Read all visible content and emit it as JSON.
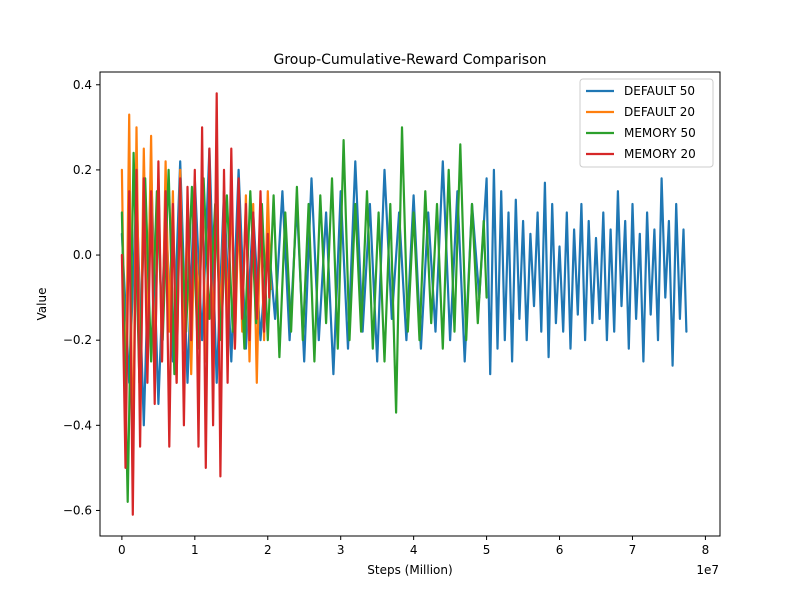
{
  "chart_data": {
    "type": "line",
    "title": "Group-Cumulative-Reward Comparison",
    "xlabel": "Steps (Million)",
    "ylabel": "Value",
    "x_offset_text": "1e7",
    "xlim": [
      -0.3,
      8.2
    ],
    "ylim": [
      -0.66,
      0.43
    ],
    "x_ticks": [
      0,
      1,
      2,
      3,
      4,
      5,
      6,
      7,
      8
    ],
    "x_tick_labels": [
      "0",
      "1",
      "2",
      "3",
      "4",
      "5",
      "6",
      "7",
      "8"
    ],
    "y_ticks": [
      -0.6,
      -0.4,
      -0.2,
      0.0,
      0.2,
      0.4
    ],
    "y_tick_labels": [
      "−0.6",
      "−0.4",
      "−0.2",
      "0.0",
      "0.2",
      "0.4"
    ],
    "grid": false,
    "legend_position": "top-right",
    "series": [
      {
        "name": "DEFAULT 50",
        "color": "#1f77b4",
        "x": [
          0.0,
          0.1,
          0.2,
          0.3,
          0.4,
          0.5,
          0.6,
          0.7,
          0.8,
          0.9,
          1.0,
          1.1,
          1.2,
          1.3,
          1.4,
          1.5,
          1.6,
          1.7,
          1.8,
          1.9,
          2.0,
          2.1,
          2.2,
          2.3,
          2.4,
          2.5,
          2.6,
          2.7,
          2.8,
          2.9,
          3.0,
          3.1,
          3.2,
          3.3,
          3.4,
          3.5,
          3.6,
          3.7,
          3.8,
          3.9,
          4.0,
          4.1,
          4.2,
          4.3,
          4.4,
          4.5,
          4.6,
          4.7,
          4.8,
          4.9,
          5.0,
          5.05,
          5.1,
          5.15,
          5.2,
          5.25,
          5.3,
          5.35,
          5.4,
          5.45,
          5.5,
          5.55,
          5.6,
          5.65,
          5.7,
          5.75,
          5.8,
          5.85,
          5.9,
          5.95,
          6.0,
          6.05,
          6.1,
          6.15,
          6.2,
          6.25,
          6.3,
          6.35,
          6.4,
          6.45,
          6.5,
          6.55,
          6.6,
          6.65,
          6.7,
          6.75,
          6.8,
          6.85,
          6.9,
          6.95,
          7.0,
          7.05,
          7.1,
          7.15,
          7.2,
          7.25,
          7.3,
          7.35,
          7.4,
          7.45,
          7.5,
          7.55,
          7.6,
          7.65,
          7.7,
          7.74
        ],
        "y": [
          0.05,
          -0.3,
          0.15,
          -0.4,
          0.2,
          -0.35,
          0.1,
          -0.25,
          0.22,
          -0.3,
          0.18,
          -0.2,
          0.25,
          -0.3,
          0.15,
          -0.25,
          0.2,
          -0.22,
          0.1,
          -0.2,
          0.05,
          -0.15,
          0.15,
          -0.2,
          0.12,
          -0.25,
          0.18,
          -0.2,
          0.1,
          -0.28,
          0.15,
          -0.22,
          0.22,
          -0.18,
          0.12,
          -0.25,
          0.2,
          -0.15,
          0.1,
          -0.2,
          0.14,
          -0.22,
          0.1,
          -0.18,
          0.22,
          -0.2,
          0.15,
          -0.25,
          0.12,
          -0.1,
          0.18,
          -0.28,
          0.2,
          -0.22,
          0.15,
          -0.2,
          0.1,
          -0.25,
          0.13,
          -0.15,
          0.08,
          -0.2,
          0.05,
          -0.12,
          0.1,
          -0.18,
          0.17,
          -0.24,
          0.12,
          -0.16,
          0.02,
          -0.18,
          0.1,
          -0.22,
          0.06,
          -0.14,
          0.12,
          -0.2,
          0.08,
          -0.16,
          0.04,
          -0.15,
          0.1,
          -0.2,
          0.06,
          -0.18,
          0.15,
          -0.12,
          0.08,
          -0.22,
          0.12,
          -0.15,
          0.05,
          -0.25,
          0.1,
          -0.14,
          0.06,
          -0.2,
          0.18,
          -0.1,
          0.08,
          -0.26,
          0.12,
          -0.15,
          0.06,
          -0.18
        ]
      },
      {
        "name": "DEFAULT 20",
        "color": "#ff7f0e",
        "x": [
          0.0,
          0.05,
          0.1,
          0.15,
          0.2,
          0.25,
          0.3,
          0.35,
          0.4,
          0.45,
          0.5,
          0.55,
          0.6,
          0.65,
          0.7,
          0.75,
          0.8,
          0.85,
          0.9,
          0.95,
          1.0,
          1.05,
          1.1,
          1.15,
          1.2,
          1.25,
          1.3,
          1.35,
          1.4,
          1.45,
          1.5,
          1.55,
          1.6,
          1.65,
          1.7,
          1.75,
          1.8,
          1.85,
          1.9,
          1.95,
          2.0,
          2.04
        ],
        "y": [
          0.2,
          -0.4,
          0.33,
          -0.55,
          0.3,
          -0.35,
          0.25,
          -0.2,
          0.28,
          -0.3,
          0.18,
          -0.25,
          0.22,
          -0.18,
          0.15,
          -0.3,
          0.2,
          -0.22,
          0.12,
          -0.28,
          0.1,
          -0.15,
          0.18,
          -0.25,
          0.14,
          -0.2,
          0.16,
          -0.18,
          0.12,
          -0.15,
          0.15,
          -0.22,
          0.1,
          -0.18,
          0.14,
          -0.25,
          0.12,
          -0.3,
          0.1,
          -0.2,
          0.15,
          -0.08
        ]
      },
      {
        "name": "MEMORY 50",
        "color": "#2ca02c",
        "x": [
          0.0,
          0.08,
          0.16,
          0.24,
          0.32,
          0.4,
          0.48,
          0.56,
          0.64,
          0.72,
          0.8,
          0.88,
          0.96,
          1.04,
          1.12,
          1.2,
          1.28,
          1.36,
          1.44,
          1.52,
          1.6,
          1.68,
          1.76,
          1.84,
          1.92,
          2.0,
          2.08,
          2.16,
          2.24,
          2.32,
          2.4,
          2.48,
          2.56,
          2.64,
          2.72,
          2.8,
          2.88,
          2.96,
          3.04,
          3.12,
          3.2,
          3.28,
          3.36,
          3.44,
          3.52,
          3.6,
          3.68,
          3.76,
          3.84,
          3.92,
          4.0,
          4.08,
          4.16,
          4.24,
          4.32,
          4.4,
          4.48,
          4.56,
          4.64,
          4.72,
          4.8,
          4.88,
          4.96,
          5.0
        ],
        "y": [
          0.1,
          -0.58,
          0.24,
          -0.3,
          0.18,
          -0.25,
          0.15,
          -0.2,
          0.2,
          -0.28,
          0.12,
          -0.18,
          0.16,
          -0.22,
          0.18,
          -0.15,
          0.12,
          -0.2,
          0.14,
          -0.18,
          0.1,
          -0.22,
          0.15,
          -0.16,
          0.12,
          -0.2,
          0.14,
          -0.24,
          0.1,
          -0.18,
          0.16,
          -0.2,
          0.12,
          -0.25,
          0.14,
          -0.16,
          0.18,
          -0.22,
          0.27,
          -0.2,
          0.12,
          -0.18,
          0.15,
          -0.22,
          0.1,
          -0.25,
          0.12,
          -0.37,
          0.3,
          -0.18,
          0.1,
          -0.2,
          0.15,
          -0.16,
          0.12,
          -0.22,
          0.2,
          -0.18,
          0.26,
          -0.2,
          0.12,
          -0.16,
          0.08,
          -0.1
        ]
      },
      {
        "name": "MEMORY 20",
        "color": "#d62728",
        "x": [
          0.0,
          0.05,
          0.1,
          0.15,
          0.2,
          0.25,
          0.3,
          0.35,
          0.4,
          0.45,
          0.5,
          0.55,
          0.6,
          0.65,
          0.7,
          0.75,
          0.8,
          0.85,
          0.9,
          0.95,
          1.0,
          1.05,
          1.1,
          1.15,
          1.2,
          1.25,
          1.3,
          1.35,
          1.4,
          1.45,
          1.5,
          1.55,
          1.6,
          1.65,
          1.7,
          1.75,
          1.8,
          1.85,
          1.9,
          1.95,
          2.0,
          2.02
        ],
        "y": [
          0.0,
          -0.5,
          0.15,
          -0.61,
          0.2,
          -0.45,
          0.18,
          -0.3,
          0.15,
          -0.35,
          0.22,
          -0.25,
          0.15,
          -0.45,
          0.12,
          -0.3,
          0.18,
          -0.4,
          0.16,
          -0.2,
          0.2,
          -0.45,
          0.3,
          -0.5,
          0.25,
          -0.4,
          0.38,
          -0.52,
          0.2,
          -0.3,
          0.25,
          -0.22,
          0.18,
          -0.15,
          0.12,
          -0.2,
          0.1,
          -0.15,
          0.15,
          -0.18,
          0.05,
          -0.1
        ]
      }
    ]
  }
}
